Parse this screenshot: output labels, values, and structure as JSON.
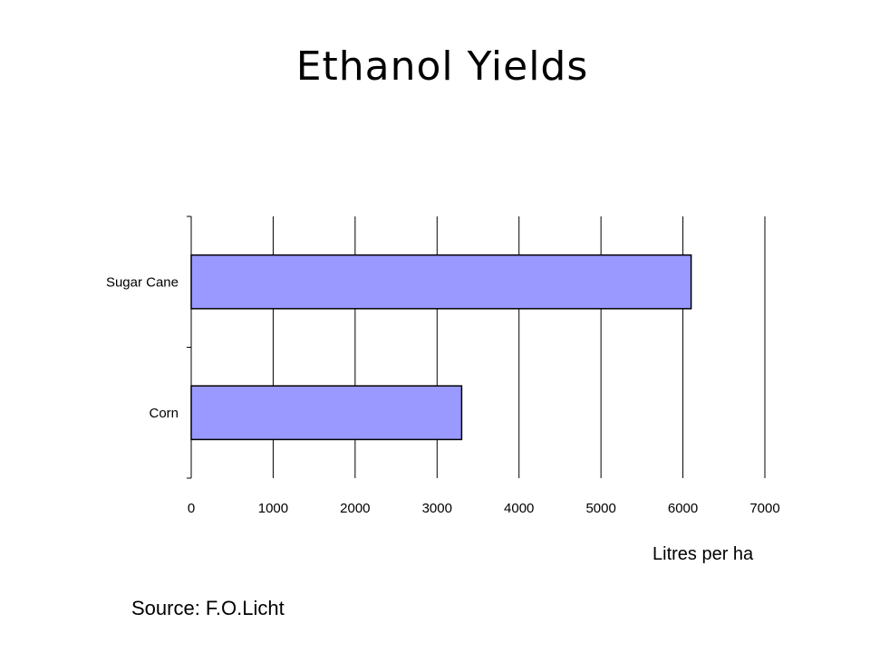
{
  "title": "Ethanol Yields",
  "unit_label": "Litres per ha",
  "source": "Source: F.O.Licht",
  "chart_data": {
    "type": "bar",
    "orientation": "horizontal",
    "categories": [
      "Sugar Cane",
      "Corn"
    ],
    "values": [
      6100,
      3300
    ],
    "xlabel": "Litres per ha",
    "ylabel": "",
    "xlim": [
      0,
      7000
    ],
    "xticks": [
      0,
      1000,
      2000,
      3000,
      4000,
      5000,
      6000,
      7000
    ],
    "grid": true,
    "legend": "none",
    "bar_color": "#9999ff"
  }
}
